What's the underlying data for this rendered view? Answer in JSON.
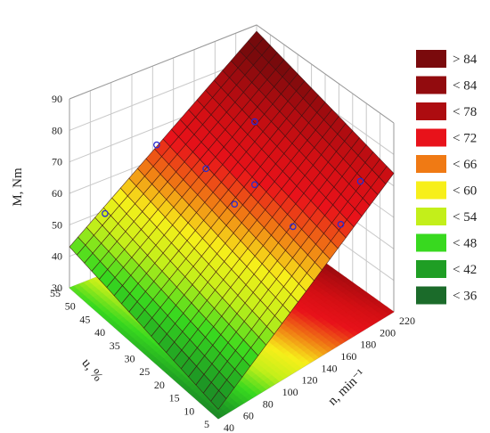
{
  "chart_data": {
    "type": "surface3d",
    "zlabel": "M, Nm",
    "ulabel": "u, %",
    "nlabel": "n, min⁻¹",
    "zlim": [
      30,
      90
    ],
    "zticks": [
      "30",
      "40",
      "50",
      "60",
      "70",
      "80",
      "90"
    ],
    "ulim": [
      5,
      55
    ],
    "uticks": [
      "5",
      "10",
      "15",
      "20",
      "25",
      "30",
      "35",
      "40",
      "45",
      "50",
      "55"
    ],
    "nlim": [
      40,
      220
    ],
    "nticks": [
      "40",
      "60",
      "80",
      "100",
      "120",
      "140",
      "160",
      "180",
      "200",
      "220"
    ],
    "surface_corners": {
      "u55_n40": 43,
      "u5_n40": 33,
      "u55_n220": 88,
      "u5_n220": 74
    },
    "points": [
      {
        "u": 50,
        "n": 60,
        "M": 55
      },
      {
        "u": 50,
        "n": 110,
        "M": 70
      },
      {
        "u": 40,
        "n": 130,
        "M": 67
      },
      {
        "u": 30,
        "n": 130,
        "M": 63
      },
      {
        "u": 30,
        "n": 150,
        "M": 86
      },
      {
        "u": 20,
        "n": 160,
        "M": 58
      },
      {
        "u": 10,
        "n": 180,
        "M": 62
      },
      {
        "u": 10,
        "n": 200,
        "M": 72
      },
      {
        "u": 30,
        "n": 150,
        "M": 66
      }
    ],
    "legend": [
      {
        "label": "> 84",
        "color": "#7a0a0c"
      },
      {
        "label": "< 84",
        "color": "#920b0e"
      },
      {
        "label": "< 78",
        "color": "#ad0c10"
      },
      {
        "label": "< 72",
        "color": "#e8121a"
      },
      {
        "label": "< 66",
        "color": "#f07a14"
      },
      {
        "label": "< 60",
        "color": "#f7ef1a"
      },
      {
        "label": "< 54",
        "color": "#c3ef1a"
      },
      {
        "label": "< 48",
        "color": "#38d91f"
      },
      {
        "label": "< 42",
        "color": "#1f9e24"
      },
      {
        "label": "< 36",
        "color": "#1b6b2a"
      }
    ],
    "legend_placement": "right"
  }
}
